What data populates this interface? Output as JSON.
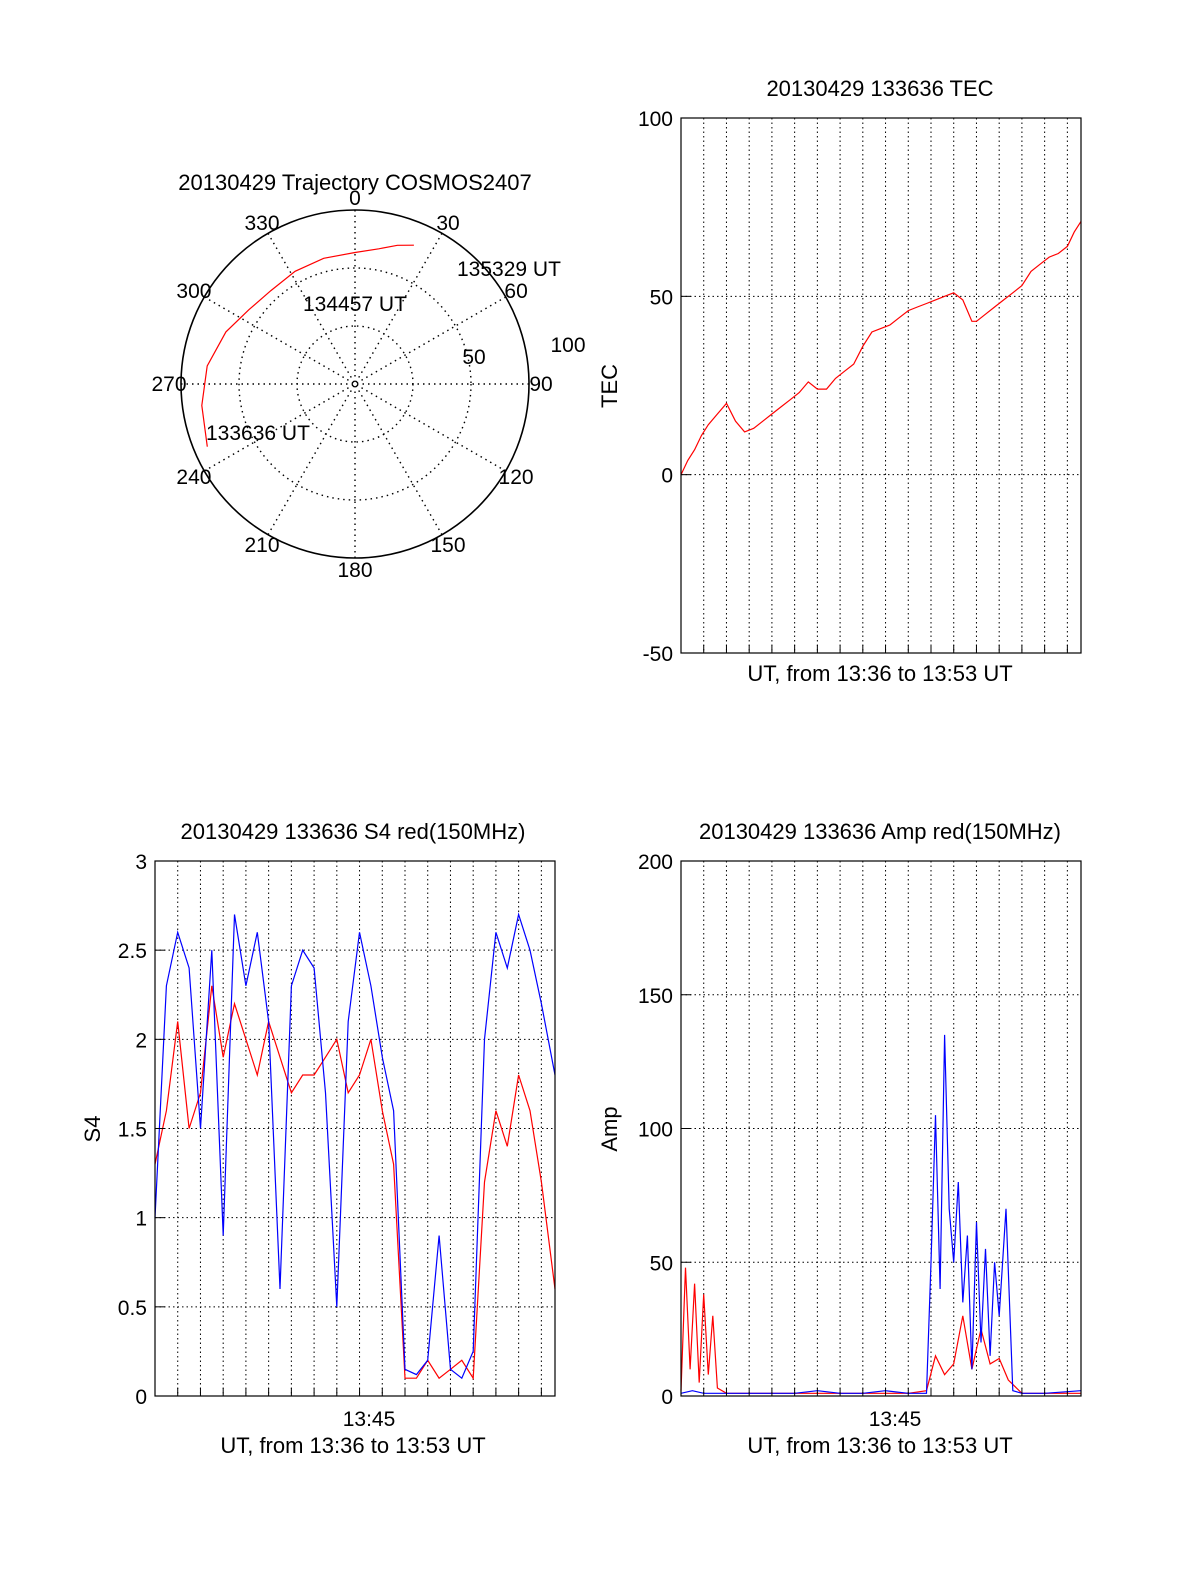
{
  "colors": {
    "red": "#ff0000",
    "blue": "#0000ff",
    "axis": "#000000",
    "grid": "#000000"
  },
  "chart_data": [
    {
      "id": "trajectory",
      "type": "scatter",
      "projection": "polar",
      "title": "20130429 Trajectory COSMOS2407",
      "azimuth_labels": [
        "0",
        "30",
        "60",
        "90",
        "120",
        "150",
        "180",
        "210",
        "240",
        "270",
        "300",
        "330"
      ],
      "radial_labels": [
        "50",
        "100"
      ],
      "track": {
        "color": "#ff0000",
        "points": [
          {
            "az": 247,
            "r": 83
          },
          {
            "az": 262,
            "r": 80
          },
          {
            "az": 277,
            "r": 77
          },
          {
            "az": 292,
            "r": 72
          },
          {
            "az": 305,
            "r": 67
          },
          {
            "az": 318,
            "r": 65
          },
          {
            "az": 332,
            "r": 66
          },
          {
            "az": 346,
            "r": 67
          },
          {
            "az": 360,
            "r": 68
          },
          {
            "az": 10,
            "r": 71
          },
          {
            "az": 17,
            "r": 75
          },
          {
            "az": 23,
            "r": 78
          }
        ]
      },
      "annotations": [
        "135329 UT",
        "134457 UT",
        "133636 UT"
      ]
    },
    {
      "id": "tec",
      "type": "line",
      "title": "20130429 133636 TEC",
      "ylabel": "TEC",
      "xlabel": "UT, from 13:36 to 13:53 UT",
      "xlim": [
        0,
        17.6
      ],
      "ylim": [
        -50,
        100
      ],
      "yticks": [
        "-50",
        "0",
        "50",
        "100"
      ],
      "grid": true,
      "series": [
        {
          "color": "#ff0000",
          "x": [
            0,
            0.3,
            0.6,
            0.9,
            1.2,
            1.6,
            2.0,
            2.4,
            2.8,
            3.2,
            3.6,
            4.0,
            4.4,
            4.8,
            5.2,
            5.6,
            6.0,
            6.4,
            6.8,
            7.2,
            7.6,
            8.0,
            8.4,
            8.8,
            9.2,
            9.6,
            10.0,
            10.4,
            10.8,
            11.2,
            11.6,
            12.0,
            12.4,
            12.8,
            13.0,
            13.4,
            13.8,
            14.2,
            14.6,
            15.0,
            15.4,
            15.8,
            16.2,
            16.6,
            17.0,
            17.3,
            17.6
          ],
          "y": [
            0,
            4,
            7,
            11,
            14,
            17,
            20,
            15,
            12,
            13,
            15,
            17,
            19,
            21,
            23,
            26,
            24,
            24,
            27,
            29,
            31,
            36,
            40,
            41,
            42,
            44,
            46,
            47,
            48,
            49,
            50,
            51,
            49,
            43,
            43,
            45,
            47,
            49,
            51,
            53,
            57,
            59,
            61,
            62,
            64,
            68,
            71
          ]
        }
      ]
    },
    {
      "id": "s4",
      "type": "line",
      "title": "20130429 133636 S4 red(150MHz)",
      "ylabel": "S4",
      "xlabel": "UT, from 13:36 to 13:53 UT",
      "xtick_labels": [
        "13:45"
      ],
      "xlim": [
        0,
        17.6
      ],
      "ylim": [
        0,
        3
      ],
      "yticks": [
        "0",
        "0.5",
        "1",
        "1.5",
        "2",
        "2.5",
        "3"
      ],
      "grid": true,
      "series": [
        {
          "color": "#ff0000",
          "x": [
            0,
            0.5,
            1.0,
            1.5,
            2.0,
            2.5,
            3.0,
            3.5,
            4.0,
            4.5,
            5.0,
            5.5,
            6.0,
            6.5,
            7.0,
            7.5,
            8.0,
            8.5,
            9.0,
            9.5,
            10.0,
            10.5,
            11.0,
            11.5,
            12.0,
            12.5,
            13.0,
            13.5,
            14.0,
            14.5,
            15.0,
            15.5,
            16.0,
            16.5,
            17.0,
            17.6
          ],
          "y": [
            1.3,
            1.6,
            2.1,
            1.5,
            1.7,
            2.3,
            1.9,
            2.2,
            2.0,
            1.8,
            2.1,
            1.9,
            1.7,
            1.8,
            1.8,
            1.9,
            2.0,
            1.7,
            1.8,
            2.0,
            1.6,
            1.3,
            0.1,
            0.1,
            0.2,
            0.1,
            0.15,
            0.2,
            0.1,
            1.2,
            1.6,
            1.4,
            1.8,
            1.6,
            1.2,
            0.6
          ]
        },
        {
          "color": "#0000ff",
          "x": [
            0,
            0.5,
            1.0,
            1.5,
            2.0,
            2.5,
            3.0,
            3.5,
            4.0,
            4.5,
            5.0,
            5.5,
            6.0,
            6.5,
            7.0,
            7.5,
            8.0,
            8.5,
            9.0,
            9.5,
            10.0,
            10.5,
            11.0,
            11.5,
            12.0,
            12.5,
            13.0,
            13.5,
            14.0,
            14.5,
            15.0,
            15.5,
            16.0,
            16.5,
            17.0,
            17.6
          ],
          "y": [
            1.0,
            2.3,
            2.6,
            2.4,
            1.5,
            2.5,
            0.9,
            2.7,
            2.3,
            2.6,
            2.1,
            0.6,
            2.3,
            2.5,
            2.4,
            1.7,
            0.5,
            2.1,
            2.6,
            2.3,
            1.9,
            1.6,
            0.15,
            0.12,
            0.2,
            0.9,
            0.15,
            0.1,
            0.25,
            2.0,
            2.6,
            2.4,
            2.7,
            2.5,
            2.2,
            1.8
          ]
        }
      ]
    },
    {
      "id": "amp",
      "type": "line",
      "title": "20130429 133636 Amp red(150MHz)",
      "ylabel": "Amp",
      "xlabel": "UT, from 13:36 to 13:53 UT",
      "xtick_labels": [
        "13:45"
      ],
      "xlim": [
        0,
        17.6
      ],
      "ylim": [
        0,
        200
      ],
      "yticks": [
        "0",
        "50",
        "100",
        "150",
        "200"
      ],
      "grid": true,
      "series": [
        {
          "color": "#ff0000",
          "x": [
            0,
            0.2,
            0.4,
            0.6,
            0.8,
            1.0,
            1.2,
            1.4,
            1.6,
            2.0,
            4.0,
            6.0,
            8.0,
            10.0,
            10.8,
            11.2,
            11.6,
            12.0,
            12.4,
            12.8,
            13.2,
            13.6,
            14.0,
            14.4,
            15.0,
            16.0,
            17.6
          ],
          "y": [
            2,
            48,
            10,
            42,
            5,
            38,
            8,
            30,
            3,
            1,
            1,
            1,
            1,
            1,
            2,
            15,
            8,
            12,
            30,
            10,
            25,
            12,
            14,
            6,
            1,
            1,
            1
          ]
        },
        {
          "color": "#0000ff",
          "x": [
            0,
            0.5,
            1.0,
            1.5,
            2.0,
            3.0,
            4.0,
            5.0,
            6.0,
            7.0,
            8.0,
            9.0,
            10.0,
            10.8,
            11.0,
            11.2,
            11.4,
            11.6,
            11.8,
            12.0,
            12.2,
            12.4,
            12.6,
            12.8,
            13.0,
            13.2,
            13.4,
            13.6,
            13.8,
            14.0,
            14.3,
            14.6,
            15.0,
            16.0,
            17.6
          ],
          "y": [
            1,
            2,
            1,
            1,
            1,
            1,
            1,
            1,
            2,
            1,
            1,
            2,
            1,
            1,
            50,
            105,
            40,
            135,
            70,
            50,
            80,
            35,
            60,
            10,
            65,
            20,
            55,
            15,
            50,
            30,
            70,
            2,
            1,
            1,
            2
          ]
        }
      ]
    }
  ]
}
